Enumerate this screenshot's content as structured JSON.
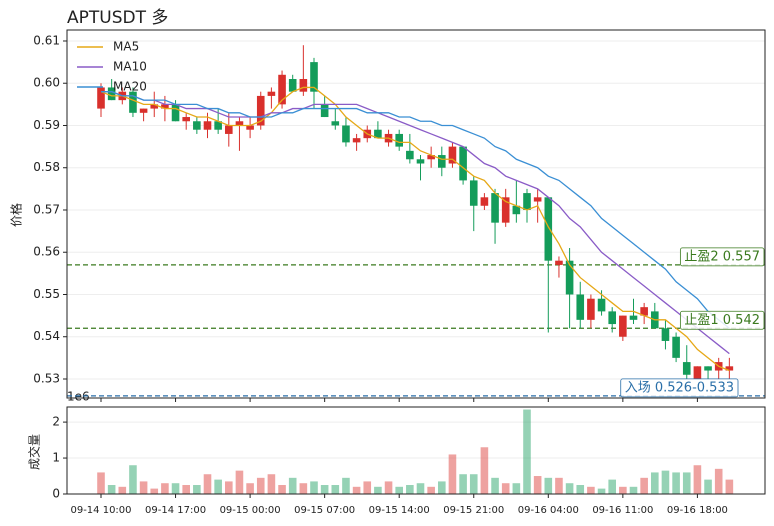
{
  "chart_data": [
    {
      "type": "candlestick",
      "title": "APTUSDT 多",
      "y_label": "价格",
      "ylim": [
        0.5255,
        0.6126
      ],
      "yticks": [
        0.53,
        0.54,
        0.55,
        0.56,
        0.57,
        0.58,
        0.59,
        {
          "value": 0.6,
          "label": "0.60"
        },
        0.61
      ],
      "grid": true,
      "legend": "upper left",
      "up_color": "#d9302c",
      "down_color": "#149c5a",
      "open": [
        0.594,
        0.599,
        0.596,
        0.598,
        0.593,
        0.594,
        0.594,
        0.595,
        0.591,
        0.591,
        0.589,
        0.591,
        0.588,
        0.59,
        0.589,
        0.59,
        0.597,
        0.595,
        0.601,
        0.598,
        0.605,
        0.595,
        0.591,
        0.59,
        0.586,
        0.587,
        0.589,
        0.586,
        0.588,
        0.584,
        0.582,
        0.582,
        0.583,
        0.581,
        0.585,
        0.577,
        0.571,
        0.574,
        0.567,
        0.571,
        0.574,
        0.572,
        0.573,
        0.557,
        0.558,
        0.55,
        0.544,
        0.549,
        0.546,
        0.54,
        0.545,
        0.545,
        0.546,
        0.542,
        0.54,
        0.534,
        0.53,
        0.533,
        0.532,
        0.532
      ],
      "high": [
        0.6,
        0.601,
        0.599,
        0.599,
        0.594,
        0.598,
        0.597,
        0.596,
        0.593,
        0.592,
        0.593,
        0.594,
        0.593,
        0.592,
        0.592,
        0.598,
        0.599,
        0.603,
        0.602,
        0.609,
        0.606,
        0.597,
        0.594,
        0.592,
        0.588,
        0.59,
        0.591,
        0.589,
        0.589,
        0.588,
        0.583,
        0.585,
        0.585,
        0.586,
        0.585,
        0.578,
        0.574,
        0.575,
        0.575,
        0.577,
        0.575,
        0.575,
        0.573,
        0.559,
        0.561,
        0.553,
        0.55,
        0.551,
        0.547,
        0.545,
        0.549,
        0.548,
        0.548,
        0.544,
        0.541,
        0.538,
        0.533,
        0.533,
        0.535,
        0.535
      ],
      "low": [
        0.592,
        0.596,
        0.595,
        0.592,
        0.591,
        0.592,
        0.591,
        0.591,
        0.589,
        0.588,
        0.587,
        0.588,
        0.585,
        0.584,
        0.587,
        0.589,
        0.594,
        0.594,
        0.598,
        0.597,
        0.594,
        0.592,
        0.589,
        0.585,
        0.584,
        0.586,
        0.587,
        0.585,
        0.584,
        0.581,
        0.577,
        0.58,
        0.578,
        0.58,
        0.576,
        0.565,
        0.57,
        0.562,
        0.566,
        0.567,
        0.567,
        0.567,
        0.541,
        0.554,
        0.542,
        0.542,
        0.542,
        0.545,
        0.541,
        0.539,
        0.543,
        0.543,
        0.542,
        0.537,
        0.534,
        0.53,
        0.53,
        0.53,
        0.53,
        0.53
      ],
      "close": [
        0.599,
        0.596,
        0.598,
        0.593,
        0.594,
        0.595,
        0.595,
        0.591,
        0.592,
        0.589,
        0.591,
        0.589,
        0.59,
        0.591,
        0.59,
        0.597,
        0.598,
        0.602,
        0.598,
        0.601,
        0.598,
        0.592,
        0.59,
        0.586,
        0.587,
        0.589,
        0.587,
        0.588,
        0.585,
        0.582,
        0.581,
        0.583,
        0.58,
        0.585,
        0.577,
        0.571,
        0.573,
        0.567,
        0.573,
        0.569,
        0.57,
        0.573,
        0.558,
        0.558,
        0.55,
        0.544,
        0.549,
        0.546,
        0.543,
        0.545,
        0.544,
        0.547,
        0.542,
        0.539,
        0.535,
        0.531,
        0.533,
        0.532,
        0.534,
        0.533
      ],
      "series": [
        {
          "name": "MA5",
          "color": "#e6a817",
          "values": [
            0.598,
            0.597,
            0.597,
            0.596,
            0.595,
            0.595,
            0.594,
            0.594,
            0.593,
            0.592,
            0.592,
            0.591,
            0.59,
            0.59,
            0.59,
            0.591,
            0.593,
            0.596,
            0.598,
            0.599,
            0.599,
            0.597,
            0.595,
            0.592,
            0.59,
            0.588,
            0.587,
            0.587,
            0.586,
            0.586,
            0.584,
            0.583,
            0.582,
            0.582,
            0.58,
            0.578,
            0.577,
            0.574,
            0.572,
            0.571,
            0.57,
            0.571,
            0.566,
            0.562,
            0.557,
            0.554,
            0.552,
            0.55,
            0.548,
            0.546,
            0.546,
            0.545,
            0.544,
            0.544,
            0.542,
            0.54,
            0.537,
            0.535,
            0.533,
            0.532
          ]
        },
        {
          "name": "MA10",
          "color": "#8a5cc7",
          "values": [
            0.598,
            0.598,
            0.597,
            0.597,
            0.596,
            0.596,
            0.595,
            0.595,
            0.594,
            0.594,
            0.594,
            0.593,
            0.592,
            0.592,
            0.592,
            0.592,
            0.593,
            0.593,
            0.594,
            0.594,
            0.595,
            0.595,
            0.595,
            0.595,
            0.595,
            0.594,
            0.593,
            0.592,
            0.591,
            0.59,
            0.589,
            0.588,
            0.587,
            0.586,
            0.585,
            0.583,
            0.581,
            0.58,
            0.578,
            0.577,
            0.576,
            0.575,
            0.573,
            0.571,
            0.568,
            0.566,
            0.563,
            0.56,
            0.558,
            0.556,
            0.554,
            0.552,
            0.55,
            0.548,
            0.546,
            0.544,
            0.542,
            0.54,
            0.538,
            0.536
          ]
        },
        {
          "name": "MA20",
          "color": "#3a8fd4",
          "values": [
            0.598,
            0.598,
            0.597,
            0.597,
            0.596,
            0.596,
            0.596,
            0.595,
            0.595,
            0.595,
            0.594,
            0.594,
            0.593,
            0.593,
            0.592,
            0.592,
            0.592,
            0.593,
            0.593,
            0.594,
            0.594,
            0.594,
            0.594,
            0.594,
            0.594,
            0.593,
            0.593,
            0.593,
            0.592,
            0.592,
            0.591,
            0.591,
            0.59,
            0.59,
            0.589,
            0.588,
            0.587,
            0.585,
            0.584,
            0.582,
            0.581,
            0.58,
            0.578,
            0.577,
            0.575,
            0.573,
            0.571,
            0.568,
            0.566,
            0.564,
            0.562,
            0.56,
            0.558,
            0.556,
            0.553,
            0.551,
            0.549,
            0.546,
            0.544,
            0.542
          ]
        }
      ],
      "hlines": [
        {
          "value": 0.557,
          "label": "止盈2 0.557",
          "color": "#3a7a1e"
        },
        {
          "value": 0.542,
          "label": "止盈1 0.542",
          "color": "#3a7a1e"
        },
        {
          "value": 0.526,
          "label": "入场 0.526-0.533",
          "color": "#2a6fa8"
        }
      ]
    },
    {
      "type": "bar",
      "y_label": "成交量",
      "offset_label": "1e6",
      "ylim": [
        0,
        2.42
      ],
      "yticks": [
        0,
        1,
        2
      ],
      "grid": true,
      "categories": [
        "09-14 10:00",
        null,
        null,
        null,
        null,
        null,
        null,
        "09-14 17:00",
        null,
        null,
        null,
        null,
        null,
        null,
        "09-15 00:00",
        null,
        null,
        null,
        null,
        null,
        null,
        "09-15 07:00",
        null,
        null,
        null,
        null,
        null,
        null,
        "09-15 14:00",
        null,
        null,
        null,
        null,
        null,
        null,
        "09-15 21:00",
        null,
        null,
        null,
        null,
        null,
        null,
        "09-16 04:00",
        null,
        null,
        null,
        null,
        null,
        null,
        "09-16 11:00",
        null,
        null,
        null,
        null,
        null,
        null,
        "09-16 18:00",
        null,
        null,
        null
      ],
      "values": [
        0.6,
        0.25,
        0.2,
        0.8,
        0.35,
        0.15,
        0.3,
        0.3,
        0.25,
        0.25,
        0.55,
        0.4,
        0.35,
        0.65,
        0.3,
        0.45,
        0.55,
        0.25,
        0.45,
        0.3,
        0.35,
        0.25,
        0.25,
        0.45,
        0.2,
        0.35,
        0.2,
        0.35,
        0.2,
        0.25,
        0.3,
        0.2,
        0.35,
        1.1,
        0.55,
        0.55,
        1.3,
        0.45,
        0.3,
        0.3,
        2.35,
        0.5,
        0.45,
        0.45,
        0.3,
        0.25,
        0.2,
        0.15,
        0.4,
        0.2,
        0.2,
        0.45,
        0.6,
        0.65,
        0.6,
        0.6,
        0.8,
        0.4,
        0.7,
        0.4
      ]
    }
  ]
}
